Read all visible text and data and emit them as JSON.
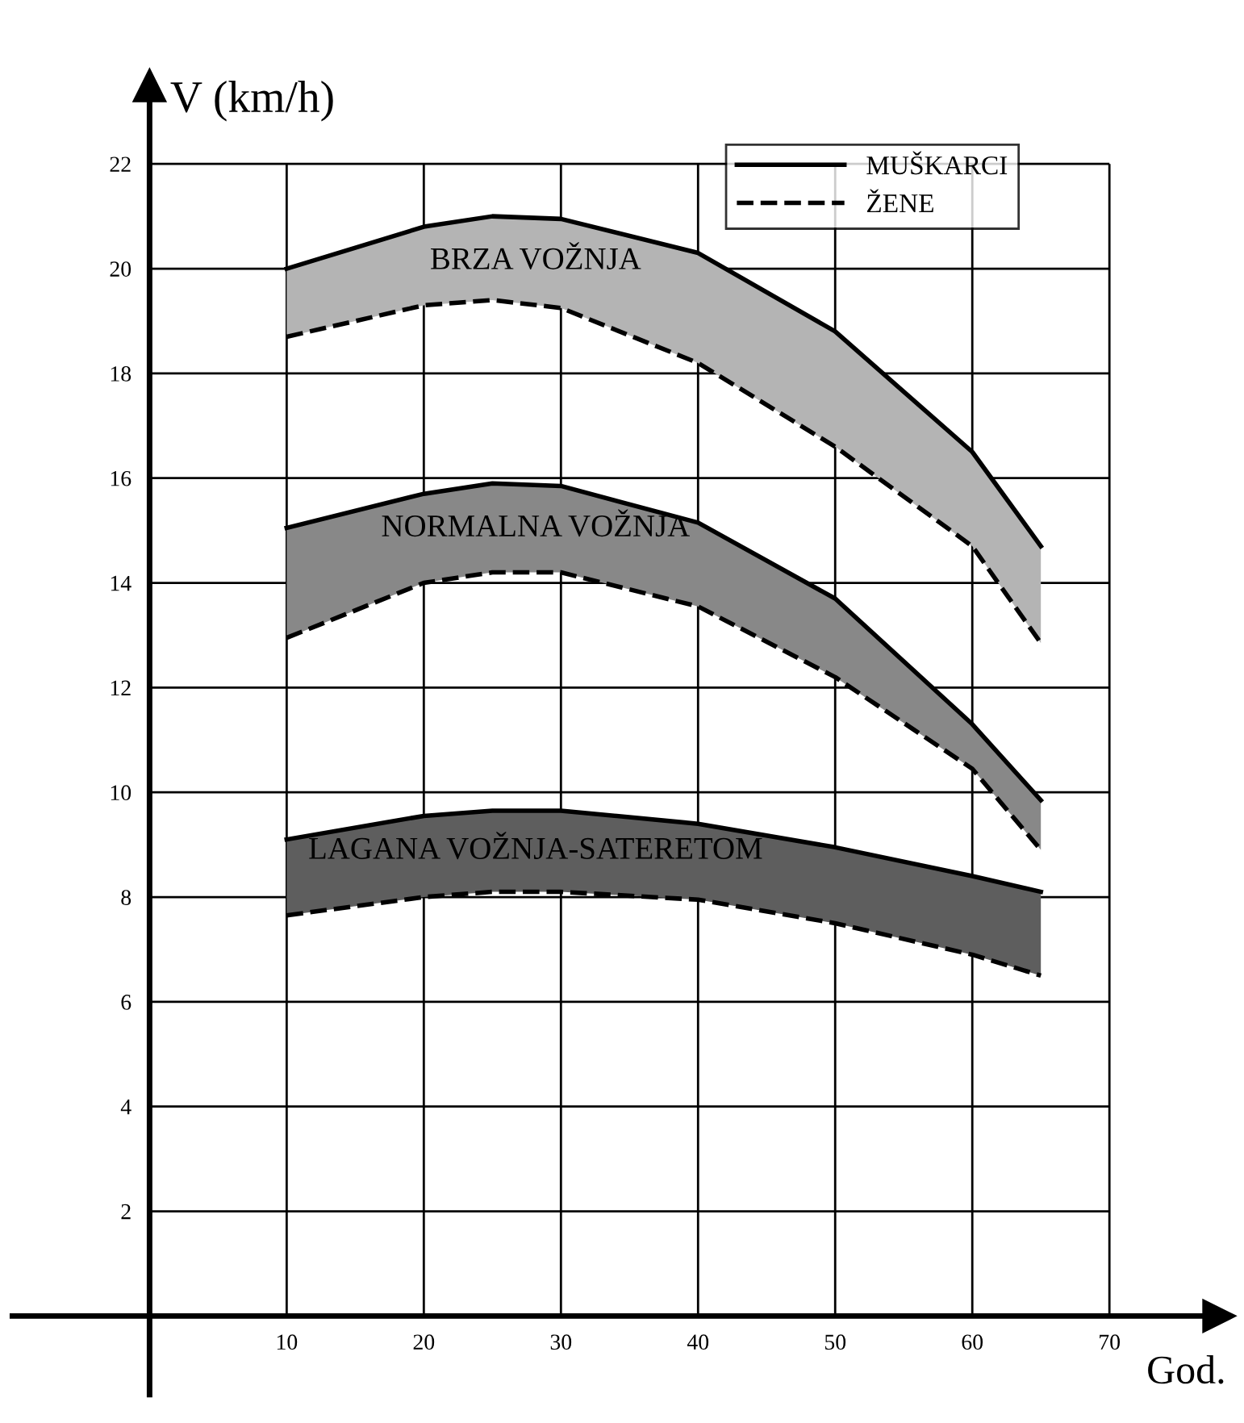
{
  "chart_data": {
    "type": "line",
    "ylabel": "V (km/h)",
    "xlabel": "God.",
    "x": [
      10,
      20,
      25,
      30,
      40,
      50,
      60,
      65
    ],
    "xlim": [
      -10,
      78
    ],
    "ylim": [
      -1.5,
      23.5
    ],
    "xticks": [
      10,
      20,
      30,
      40,
      50,
      60,
      70
    ],
    "yticks": [
      2,
      4,
      6,
      8,
      10,
      12,
      14,
      16,
      18,
      20,
      22
    ],
    "grid": true,
    "legend": "top right",
    "series": [
      {
        "name": "MUŠKARCI",
        "color": "#000000",
        "line_style": "solid",
        "values": [
          20.0,
          20.8,
          21.0,
          20.95,
          20.3,
          18.8,
          16.5,
          14.7
        ],
        "lower": [
          18.7,
          19.3,
          19.4,
          19.25,
          18.2,
          16.6,
          14.7,
          12.85
        ],
        "upper": [
          20.0,
          20.8,
          21.0,
          20.95,
          20.3,
          18.8,
          16.5,
          14.7
        ]
      },
      {
        "name": "ŽENE",
        "color": "#000000",
        "line_style": "dashed",
        "values": [
          18.7,
          19.3,
          19.4,
          19.25,
          18.2,
          16.6,
          14.7,
          12.85
        ]
      },
      {
        "color": "#000000",
        "line_style": "solid",
        "values": [
          15.05,
          15.7,
          15.9,
          15.85,
          15.15,
          13.7,
          11.3,
          9.85
        ],
        "lower": [
          12.95,
          14.0,
          14.2,
          14.2,
          13.55,
          12.2,
          10.45,
          8.9
        ],
        "upper": [
          15.05,
          15.7,
          15.9,
          15.85,
          15.15,
          13.7,
          11.3,
          9.85
        ]
      },
      {
        "color": "#000000",
        "line_style": "dashed",
        "values": [
          12.95,
          14.0,
          14.2,
          14.2,
          13.55,
          12.2,
          10.45,
          8.9
        ]
      },
      {
        "color": "#000000",
        "line_style": "solid",
        "values": [
          9.1,
          9.55,
          9.65,
          9.65,
          9.4,
          8.95,
          8.4,
          8.1
        ],
        "lower": [
          7.65,
          8.0,
          8.1,
          8.1,
          7.95,
          7.5,
          6.9,
          6.5
        ],
        "upper": [
          9.1,
          9.55,
          9.65,
          9.65,
          9.4,
          8.95,
          8.4,
          8.1
        ]
      },
      {
        "color": "#000000",
        "line_style": "dashed",
        "values": [
          7.65,
          8.0,
          8.1,
          8.1,
          7.95,
          7.5,
          6.9,
          6.5
        ]
      }
    ],
    "annotations": [
      "BRZA VOŽNJA",
      "NORMALNA VOŽNJA",
      "LAGANA VOŽNJA-SATERETOM"
    ]
  }
}
